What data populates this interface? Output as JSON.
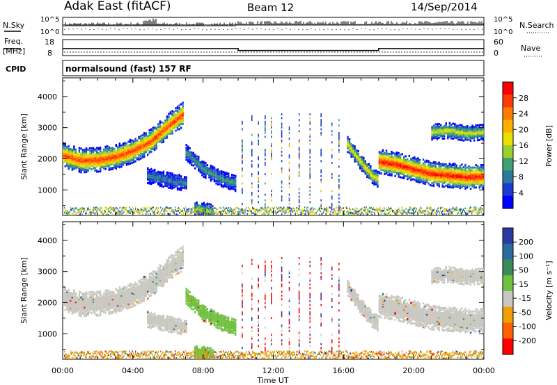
{
  "header": {
    "station": "Adak East (fitACF)",
    "beam": "Beam 12",
    "date": "14/Sep/2014"
  },
  "panels": {
    "nsky": {
      "label": "N.Sky",
      "ticks": [
        "10^5",
        "10^0"
      ]
    },
    "nsearch": {
      "label": "N.Search",
      "ticks": [
        "10^5",
        "10^0"
      ]
    },
    "freq": {
      "label_line1": "Freq.",
      "label_line2": "[MHz]",
      "ticks": [
        "18",
        "8"
      ]
    },
    "nave": {
      "label": "Nave",
      "ticks": [
        "60",
        "0"
      ]
    },
    "cpid": {
      "label": "CPID",
      "value": "normalsound (fast) 157 RF"
    }
  },
  "power_panel": {
    "ylabel": "Slant Range [km]",
    "ytick_labels": [
      "4000",
      "3000",
      "2000",
      "1000"
    ],
    "colorbar_label": "Power [dB]",
    "colorbar_ticks": [
      "28",
      "24",
      "20",
      "16",
      "12",
      "8",
      "4"
    ],
    "colors": [
      "#ff0000",
      "#ff3a00",
      "#ff7a00",
      "#ffb000",
      "#e8e000",
      "#9ad030",
      "#3fa070",
      "#2a7aa0",
      "#1a3ad0",
      "#0000ff"
    ]
  },
  "velocity_panel": {
    "ylabel": "Slant Range [km]",
    "ytick_labels": [
      "4000",
      "3000",
      "2000",
      "1000"
    ],
    "colorbar_label": "Velocity [m s⁻¹]",
    "colorbar_ticks": [
      "200",
      "100",
      "50",
      "15",
      "-15",
      "-50",
      "-100",
      "-200"
    ],
    "colors": [
      "#2a3aa0",
      "#2a6aa0",
      "#3a8a5a",
      "#70c040",
      "#c8c8c0",
      "#f0a000",
      "#ff6000",
      "#ff0000"
    ]
  },
  "xaxis": {
    "label": "Time UT",
    "ticks": [
      "00:00",
      "04:00",
      "08:00",
      "12:00",
      "16:00",
      "20:00",
      "00:00"
    ]
  },
  "chart_data": {
    "type": "heatmap",
    "title": "Adak East (fitACF)",
    "subtitle": "Beam 12",
    "xlabel": "Time UT",
    "ylabel": "Slant Range [km]",
    "x_range_hours": [
      0,
      24
    ],
    "y_range_km": [
      180,
      4600
    ],
    "freq_mhz": [
      {
        "start_h": 0.0,
        "end_h": 10.0,
        "value": 12.5
      },
      {
        "start_h": 10.0,
        "end_h": 18.0,
        "value": 11.0
      },
      {
        "start_h": 18.0,
        "end_h": 24.0,
        "value": 12.5
      }
    ],
    "nave": 8,
    "power_echo_bands": [
      {
        "name": "band-a",
        "points": [
          [
            0.0,
            2150
          ],
          [
            1.0,
            1980
          ],
          [
            2.0,
            2000
          ],
          [
            3.0,
            2100
          ],
          [
            4.0,
            2300
          ],
          [
            5.0,
            2600
          ],
          [
            6.0,
            3100
          ],
          [
            6.8,
            3450
          ]
        ],
        "peak_db": 28
      },
      {
        "name": "band-b",
        "points": [
          [
            7.0,
            2250
          ],
          [
            8.0,
            1700
          ],
          [
            9.0,
            1400
          ],
          [
            9.8,
            1250
          ]
        ],
        "peak_db": 12
      },
      {
        "name": "band-c",
        "points": [
          [
            4.8,
            1500
          ],
          [
            6.0,
            1350
          ],
          [
            7.0,
            1250
          ]
        ],
        "peak_db": 10
      },
      {
        "name": "band-d",
        "points": [
          [
            7.5,
            450
          ],
          [
            8.5,
            320
          ]
        ],
        "peak_db": 16
      },
      {
        "name": "band-e",
        "points": [
          [
            16.2,
            2500
          ],
          [
            17.0,
            1900
          ],
          [
            17.6,
            1500
          ],
          [
            18.0,
            1350
          ]
        ],
        "peak_db": 20
      },
      {
        "name": "band-f",
        "points": [
          [
            18.0,
            1950
          ],
          [
            19.0,
            1850
          ],
          [
            20.0,
            1700
          ],
          [
            21.0,
            1550
          ],
          [
            22.0,
            1500
          ],
          [
            23.0,
            1450
          ],
          [
            24.0,
            1450
          ]
        ],
        "peak_db": 30
      },
      {
        "name": "band-g",
        "points": [
          [
            21.0,
            2900
          ],
          [
            22.0,
            2950
          ],
          [
            23.0,
            2850
          ],
          [
            24.0,
            2900
          ]
        ],
        "peak_db": 18
      }
    ],
    "velocity_ranges_m_s": [
      -200,
      200
    ]
  }
}
